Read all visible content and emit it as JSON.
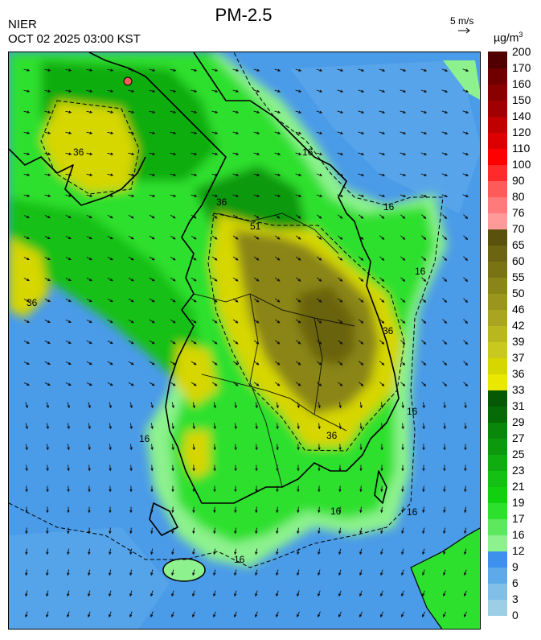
{
  "header": {
    "source": "NIER",
    "datetime": "OCT 02 2025 03:00 KST",
    "title": "PM-2.5",
    "vector_reference": "5 m/s",
    "unit": "µg/m",
    "unit_exp": "3"
  },
  "legend": {
    "levels": [
      "0",
      "3",
      "6",
      "9",
      "12",
      "16",
      "17",
      "19",
      "21",
      "23",
      "25",
      "27",
      "29",
      "31",
      "33",
      "36",
      "37",
      "39",
      "42",
      "46",
      "50",
      "55",
      "60",
      "65",
      "70",
      "76",
      "80",
      "90",
      "100",
      "110",
      "120",
      "140",
      "150",
      "160",
      "170",
      "200"
    ],
    "colors": [
      "#9ccfe6",
      "#7fbfe8",
      "#5ea9ea",
      "#3d90ec",
      "#8df28d",
      "#5de85d",
      "#2ee02e",
      "#10d010",
      "#14c014",
      "#10ad10",
      "#0d990d",
      "#0a860a",
      "#066b06",
      "#055905",
      "#e8e800",
      "#d6d600",
      "#c8c81f",
      "#b8b81e",
      "#aaa520",
      "#9a951c",
      "#8a8518",
      "#7a7314",
      "#6b6410",
      "#5a520c",
      "#ff9a9a",
      "#ff7a7a",
      "#ff5a5a",
      "#ff2a2a",
      "#ff0000",
      "#dd0000",
      "#c00000",
      "#a00000",
      "#880000",
      "#700000",
      "#500000"
    ]
  },
  "map": {
    "contour_labels": [
      "16",
      "16",
      "16",
      "16",
      "16",
      "16",
      "16",
      "16",
      "36",
      "36",
      "36",
      "36",
      "36",
      "51"
    ]
  }
}
